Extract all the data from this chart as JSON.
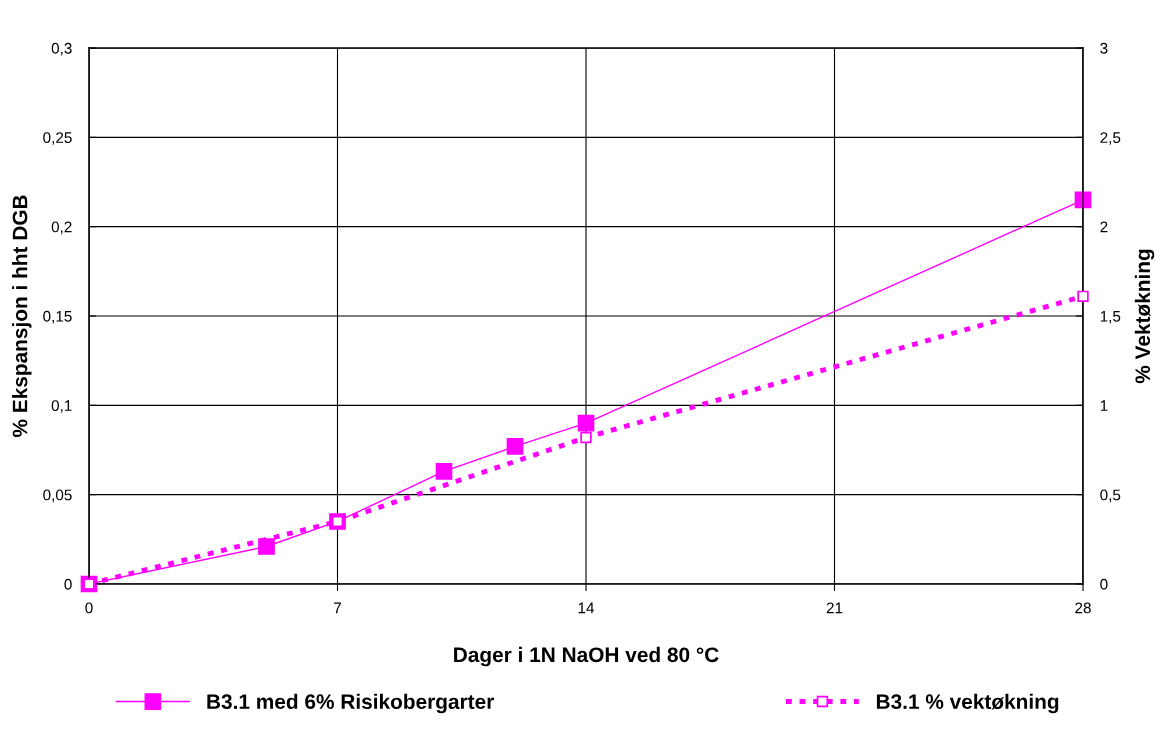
{
  "chart_data": {
    "type": "line",
    "xlabel": "Dager i 1N NaOH ved 80 °C",
    "ylabel": "% Ekspansjon i hht DGB",
    "y2label": "% Vektøkning",
    "series": [
      {
        "name": "B3.1 med 6% Risikobergarter",
        "color": "#ff00ff",
        "x": [
          0,
          5,
          7,
          10,
          12,
          14,
          28
        ],
        "values": [
          0,
          0.021,
          0.035,
          0.063,
          0.077,
          0.09,
          0.215
        ],
        "line_style": "solid"
      },
      {
        "name": "B3.1 % vektøkning",
        "color": "#ff00ff",
        "x": [
          0,
          7,
          14,
          28
        ],
        "values": [
          0,
          0.35,
          0.82,
          1.61
        ],
        "axis": "y2",
        "line_style": "dotted"
      }
    ],
    "xlim": [
      0,
      28
    ],
    "xticks": [
      0,
      7,
      14,
      21,
      28
    ],
    "ylim": [
      0,
      0.3
    ],
    "yticks": [
      {
        "value": 0,
        "label": "0"
      },
      {
        "value": 0.05,
        "label": "0,05"
      },
      {
        "value": 0.1,
        "label": "0,1"
      },
      {
        "value": 0.15,
        "label": "0,15"
      },
      {
        "value": 0.2,
        "label": "0,2"
      },
      {
        "value": 0.25,
        "label": "0,25"
      },
      {
        "value": 0.3,
        "label": "0,3"
      }
    ],
    "y2lim": [
      0,
      3
    ],
    "y2ticks": [
      {
        "value": 0,
        "label": "0"
      },
      {
        "value": 0.5,
        "label": "0,5"
      },
      {
        "value": 1,
        "label": "1"
      },
      {
        "value": 1.5,
        "label": "1,5"
      },
      {
        "value": 2,
        "label": "2"
      },
      {
        "value": 2.5,
        "label": "2,5"
      },
      {
        "value": 3,
        "label": "3"
      }
    ],
    "grid": true,
    "legend": "bottom",
    "marker": "square"
  }
}
